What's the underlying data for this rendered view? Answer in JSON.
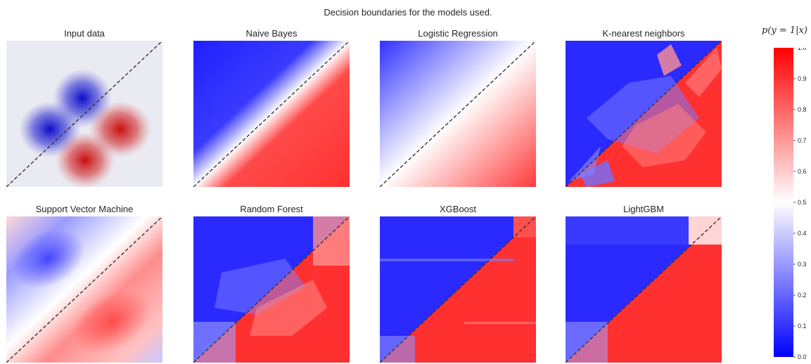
{
  "suptitle": "Decision boundaries for the models used.",
  "colorbar": {
    "label": "p(y = 1|x)",
    "ticks": [
      "0.0",
      "0.1",
      "0.2",
      "0.3",
      "0.4",
      "0.5",
      "0.6",
      "0.7",
      "0.8",
      "0.9",
      "1.0"
    ],
    "colors": {
      "low": "#0000ff",
      "mid": "#ffffff",
      "high": "#ff0000"
    }
  },
  "chart_data": [
    {
      "type": "scatter",
      "title": "Input data",
      "grid": false,
      "boundary": "dashed diagonal",
      "series": [
        {
          "color": "#0000c0",
          "values": [
            [
              -0.1,
              0.6
            ],
            [
              -0.55,
              0.05
            ]
          ]
        },
        {
          "color": "#c00000",
          "values": [
            [
              0.55,
              -0.05
            ],
            [
              0.05,
              -0.6
            ]
          ]
        }
      ]
    },
    {
      "type": "heatmap",
      "title": "Naive Bayes",
      "colormap": "bwr",
      "range": [
        0,
        1
      ]
    },
    {
      "type": "heatmap",
      "title": "Logistic Regression",
      "colormap": "bwr",
      "range": [
        0,
        1
      ]
    },
    {
      "type": "heatmap",
      "title": "K-nearest neighbors",
      "colormap": "bwr",
      "range": [
        0,
        1
      ]
    },
    {
      "type": "heatmap",
      "title": "Support Vector Machine",
      "colormap": "bwr",
      "range": [
        0,
        1
      ]
    },
    {
      "type": "heatmap",
      "title": "Random Forest",
      "colormap": "bwr",
      "range": [
        0,
        1
      ]
    },
    {
      "type": "heatmap",
      "title": "XGBoost",
      "colormap": "bwr",
      "range": [
        0,
        1
      ]
    },
    {
      "type": "heatmap",
      "title": "LightGBM",
      "colormap": "bwr",
      "range": [
        0,
        1
      ]
    }
  ]
}
